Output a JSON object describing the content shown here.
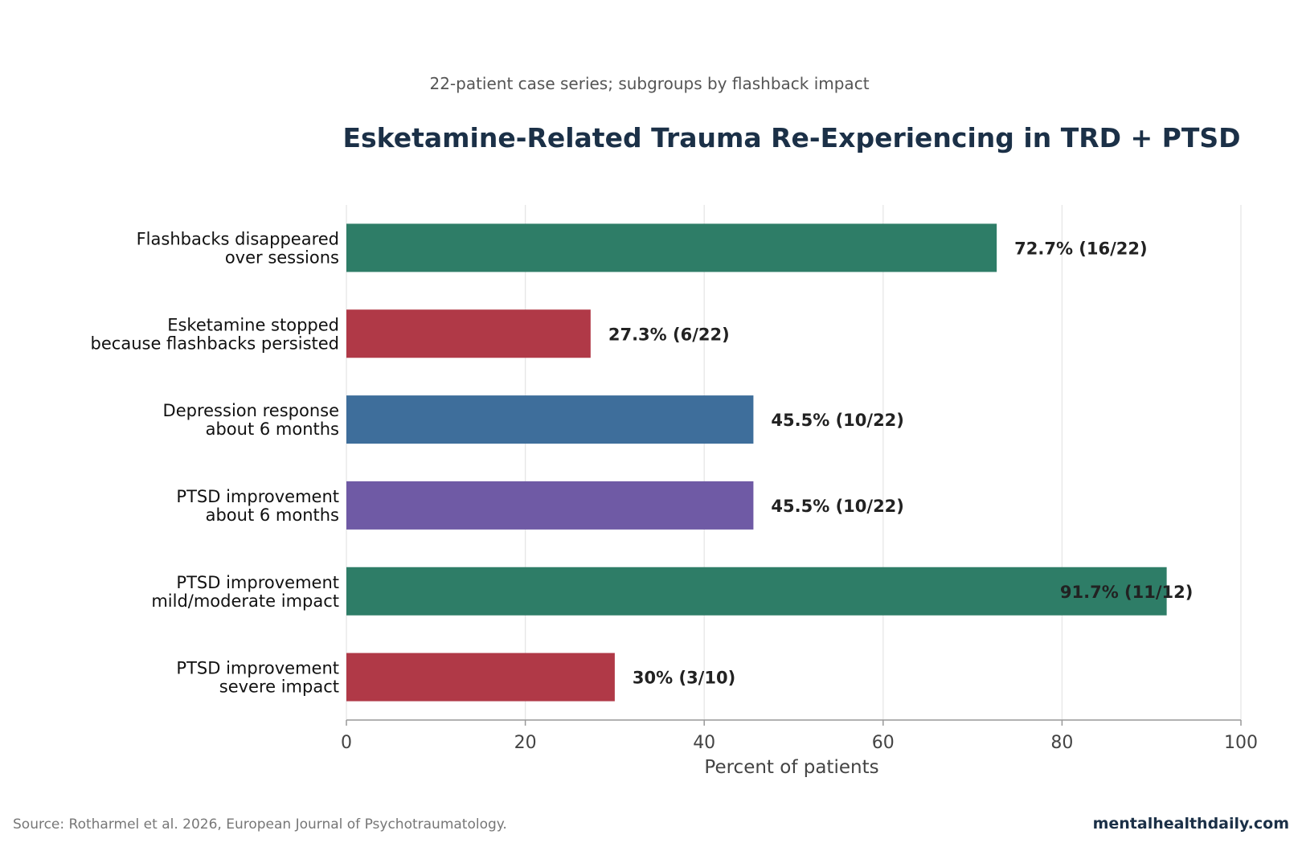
{
  "chart_data": {
    "type": "bar",
    "orientation": "horizontal",
    "subtitle": "22-patient case series; subgroups by flashback impact",
    "title": "Esketamine-Related Trauma Re-Experiencing in TRD + PTSD",
    "categories": [
      [
        "Flashbacks disappeared",
        "over sessions"
      ],
      [
        "Esketamine stopped",
        "because flashbacks persisted"
      ],
      [
        "Depression response",
        "about 6 months"
      ],
      [
        "PTSD improvement",
        "about 6 months"
      ],
      [
        "PTSD improvement",
        "mild/moderate impact"
      ],
      [
        "PTSD improvement",
        "severe impact"
      ]
    ],
    "values": [
      72.7,
      27.3,
      45.5,
      45.5,
      91.7,
      30
    ],
    "value_labels": [
      "72.7% (16/22)",
      "27.3% (6/22)",
      "45.5% (10/22)",
      "45.5% (10/22)",
      "91.7% (11/12)",
      "30% (3/10)"
    ],
    "colors": [
      "#2e7d67",
      "#b03947",
      "#3e6e9b",
      "#6f5aa5",
      "#2e7d67",
      "#b03947"
    ],
    "xlabel": "Percent of patients",
    "ylabel": "",
    "xlim": [
      0,
      100
    ],
    "xticks": [
      0,
      20,
      40,
      60,
      80,
      100
    ],
    "grid": true,
    "gridline_color": "#e6e6e6",
    "axis_color": "#999999"
  },
  "footer": {
    "source": "Source: Rotharmel et al. 2026, European Journal of Psychotraumatology.",
    "brand": "mentalhealthdaily.com"
  }
}
